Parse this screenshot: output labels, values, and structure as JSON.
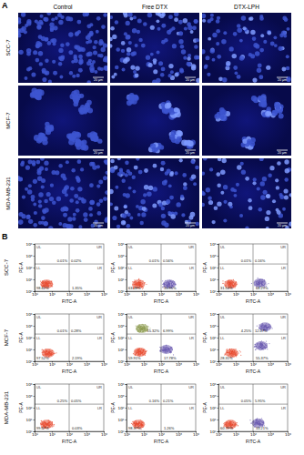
{
  "panel_a": {
    "label": "A",
    "columns": [
      "Control",
      "Free DTX",
      "DTX-LPH"
    ],
    "rows": [
      "SCC-7",
      "MCF-7",
      "MDA-MB-231"
    ],
    "scale_bar": "20 μm"
  },
  "panel_b": {
    "label": "B",
    "rows": [
      "SCC-7",
      "MCF-7",
      "MDA-MB-231"
    ]
  },
  "chart_data": [
    {
      "type": "scatter",
      "x_label": "FITC-A",
      "y_label": "PE-A",
      "log": true,
      "xlim": [
        1,
        10000
      ],
      "ylim": [
        1,
        10000
      ],
      "xticks": [
        {
          "value": 1,
          "label": "10⁰"
        },
        {
          "value": 10,
          "label": "10¹"
        },
        {
          "value": 100,
          "label": "10²"
        },
        {
          "value": 1000,
          "label": "10³"
        },
        {
          "value": 10000,
          "label": "10⁴"
        }
      ],
      "yticks": [
        {
          "value": 1,
          "label": "10⁰"
        },
        {
          "value": 10,
          "label": "10¹"
        },
        {
          "value": 100,
          "label": "10²"
        },
        {
          "value": 1000,
          "label": "10³"
        },
        {
          "value": 10000,
          "label": "10⁴"
        }
      ],
      "gate_x": 100,
      "gate_y": 200,
      "quadrants": {
        "labels": [
          "UL",
          "UR",
          "LL",
          "LR"
        ],
        "values": [
          0.01,
          0.02,
          98.62,
          1.35
        ],
        "value_labels": [
          "0.01%",
          "0.02%",
          "98.62%",
          "1.35%"
        ]
      },
      "populations": {
        "x": [
          5
        ],
        "y": [
          4
        ],
        "colors": [
          "#e84a2f"
        ]
      }
    },
    {
      "type": "scatter",
      "x_label": "FITC-A",
      "y_label": "PE-A",
      "log": true,
      "xlim": [
        1,
        10000
      ],
      "ylim": [
        1,
        10000
      ],
      "xticks": [
        {
          "value": 1,
          "label": "10⁰"
        },
        {
          "value": 10,
          "label": "10¹"
        },
        {
          "value": 100,
          "label": "10²"
        },
        {
          "value": 1000,
          "label": "10³"
        },
        {
          "value": 10000,
          "label": "10⁴"
        }
      ],
      "yticks": [
        {
          "value": 1,
          "label": "10⁰"
        },
        {
          "value": 10,
          "label": "10¹"
        },
        {
          "value": 100,
          "label": "10²"
        },
        {
          "value": 1000,
          "label": "10³"
        },
        {
          "value": 10000,
          "label": "10⁴"
        }
      ],
      "gate_x": 100,
      "gate_y": 200,
      "quadrants": {
        "labels": [
          "UL",
          "UR",
          "LL",
          "LR"
        ],
        "values": [
          0.01,
          0.56,
          63.48,
          35.95
        ],
        "value_labels": [
          "0.01%",
          "0.56%",
          "63.48%",
          "35.95%"
        ]
      },
      "populations": {
        "x": [
          5,
          300
        ],
        "y": [
          4,
          4
        ],
        "colors": [
          "#e84a2f",
          "#6b5bb0"
        ]
      }
    },
    {
      "type": "scatter",
      "x_label": "FITC-A",
      "y_label": "PE-A",
      "log": true,
      "xlim": [
        1,
        10000
      ],
      "ylim": [
        1,
        10000
      ],
      "xticks": [
        {
          "value": 1,
          "label": "10⁰"
        },
        {
          "value": 10,
          "label": "10¹"
        },
        {
          "value": 100,
          "label": "10²"
        },
        {
          "value": 1000,
          "label": "10³"
        },
        {
          "value": 10000,
          "label": "10⁴"
        }
      ],
      "yticks": [
        {
          "value": 1,
          "label": "10⁰"
        },
        {
          "value": 10,
          "label": "10¹"
        },
        {
          "value": 100,
          "label": "10²"
        },
        {
          "value": 1000,
          "label": "10³"
        },
        {
          "value": 10000,
          "label": "10⁴"
        }
      ],
      "gate_x": 100,
      "gate_y": 200,
      "quadrants": {
        "labels": [
          "UL",
          "UR",
          "LL",
          "LR"
        ],
        "values": [
          0.01,
          0.16,
          31.54,
          68.29
        ],
        "value_labels": [
          "0.01%",
          "0.16%",
          "31.54%",
          "68.29%"
        ]
      },
      "populations": {
        "x": [
          5,
          250
        ],
        "y": [
          4,
          5
        ],
        "colors": [
          "#e84a2f",
          "#6b5bb0"
        ]
      }
    },
    {
      "type": "scatter",
      "x_label": "FITC-A",
      "y_label": "PE-A",
      "log": true,
      "xlim": [
        1,
        10000
      ],
      "ylim": [
        1,
        10000
      ],
      "xticks": [
        {
          "value": 1,
          "label": "10⁰"
        },
        {
          "value": 10,
          "label": "10¹"
        },
        {
          "value": 100,
          "label": "10²"
        },
        {
          "value": 1000,
          "label": "10³"
        },
        {
          "value": 10000,
          "label": "10⁴"
        }
      ],
      "yticks": [
        {
          "value": 1,
          "label": "10⁰"
        },
        {
          "value": 10,
          "label": "10¹"
        },
        {
          "value": 100,
          "label": "10²"
        },
        {
          "value": 1000,
          "label": "10³"
        },
        {
          "value": 10000,
          "label": "10⁴"
        }
      ],
      "gate_x": 100,
      "gate_y": 200,
      "quadrants": {
        "labels": [
          "UL",
          "UR",
          "LL",
          "LR"
        ],
        "values": [
          0.01,
          0.28,
          97.52,
          2.19
        ],
        "value_labels": [
          "0.01%",
          "0.28%",
          "97.52%",
          "2.19%"
        ]
      },
      "populations": {
        "x": [
          6
        ],
        "y": [
          5
        ],
        "colors": [
          "#e84a2f"
        ]
      }
    },
    {
      "type": "scatter",
      "x_label": "FITC-A",
      "y_label": "PE-A",
      "log": true,
      "xlim": [
        1,
        10000
      ],
      "ylim": [
        1,
        10000
      ],
      "xticks": [
        {
          "value": 1,
          "label": "10⁰"
        },
        {
          "value": 10,
          "label": "10¹"
        },
        {
          "value": 100,
          "label": "10²"
        },
        {
          "value": 1000,
          "label": "10³"
        },
        {
          "value": 10000,
          "label": "10⁴"
        }
      ],
      "yticks": [
        {
          "value": 1,
          "label": "10⁰"
        },
        {
          "value": 10,
          "label": "10¹"
        },
        {
          "value": 100,
          "label": "10²"
        },
        {
          "value": 1000,
          "label": "10³"
        },
        {
          "value": 10000,
          "label": "10⁴"
        }
      ],
      "gate_x": 100,
      "gate_y": 200,
      "quadrants": {
        "labels": [
          "UL",
          "UR",
          "LL",
          "LR"
        ],
        "values": [
          15.32,
          6.99,
          59.91,
          17.78
        ],
        "value_labels": [
          "15.32%",
          "6.99%",
          "59.91%",
          "17.78%"
        ]
      },
      "populations": {
        "x": [
          6,
          8,
          200
        ],
        "y": [
          6,
          600,
          10
        ],
        "colors": [
          "#e84a2f",
          "#8c9a4e",
          "#6b5bb0"
        ]
      }
    },
    {
      "type": "scatter",
      "x_label": "FITC-A",
      "y_label": "PE-A",
      "log": true,
      "xlim": [
        1,
        10000
      ],
      "ylim": [
        1,
        10000
      ],
      "xticks": [
        {
          "value": 1,
          "label": "10⁰"
        },
        {
          "value": 10,
          "label": "10¹"
        },
        {
          "value": 100,
          "label": "10²"
        },
        {
          "value": 1000,
          "label": "10³"
        },
        {
          "value": 10000,
          "label": "10⁴"
        }
      ],
      "yticks": [
        {
          "value": 1,
          "label": "10⁰"
        },
        {
          "value": 10,
          "label": "10¹"
        },
        {
          "value": 100,
          "label": "10²"
        },
        {
          "value": 1000,
          "label": "10³"
        },
        {
          "value": 10000,
          "label": "10⁴"
        }
      ],
      "gate_x": 100,
      "gate_y": 200,
      "quadrants": {
        "labels": [
          "UL",
          "UR",
          "LL",
          "LR"
        ],
        "values": [
          4.25,
          12.07,
          28.31,
          55.37
        ],
        "value_labels": [
          "4.25%",
          "12.07%",
          "28.31%",
          "55.37%"
        ]
      },
      "populations": {
        "x": [
          6,
          300,
          500
        ],
        "y": [
          5,
          20,
          800
        ],
        "colors": [
          "#e84a2f",
          "#6b5bb0",
          "#6b5bb0"
        ]
      }
    },
    {
      "type": "scatter",
      "x_label": "FITC-A",
      "y_label": "PE-A",
      "log": true,
      "xlim": [
        1,
        10000
      ],
      "ylim": [
        1,
        10000
      ],
      "xticks": [
        {
          "value": 1,
          "label": "10⁰"
        },
        {
          "value": 10,
          "label": "10¹"
        },
        {
          "value": 100,
          "label": "10²"
        },
        {
          "value": 1000,
          "label": "10³"
        },
        {
          "value": 10000,
          "label": "10⁴"
        }
      ],
      "yticks": [
        {
          "value": 1,
          "label": "10⁰"
        },
        {
          "value": 10,
          "label": "10¹"
        },
        {
          "value": 100,
          "label": "10²"
        },
        {
          "value": 1000,
          "label": "10³"
        },
        {
          "value": 10000,
          "label": "10⁴"
        }
      ],
      "gate_x": 100,
      "gate_y": 200,
      "quadrants": {
        "labels": [
          "UL",
          "UR",
          "LL",
          "LR"
        ],
        "values": [
          0.25,
          0.05,
          99.67,
          0.03
        ],
        "value_labels": [
          "0.25%",
          "0.05%",
          "99.67%",
          "0.03%"
        ]
      },
      "populations": {
        "x": [
          5
        ],
        "y": [
          4
        ],
        "colors": [
          "#e84a2f"
        ]
      }
    },
    {
      "type": "scatter",
      "x_label": "FITC-A",
      "y_label": "PE-A",
      "log": true,
      "xlim": [
        1,
        10000
      ],
      "ylim": [
        1,
        10000
      ],
      "xticks": [
        {
          "value": 1,
          "label": "10⁰"
        },
        {
          "value": 10,
          "label": "10¹"
        },
        {
          "value": 100,
          "label": "10²"
        },
        {
          "value": 1000,
          "label": "10³"
        },
        {
          "value": 10000,
          "label": "10⁴"
        }
      ],
      "yticks": [
        {
          "value": 1,
          "label": "10⁰"
        },
        {
          "value": 10,
          "label": "10¹"
        },
        {
          "value": 100,
          "label": "10²"
        },
        {
          "value": 1000,
          "label": "10³"
        },
        {
          "value": 10000,
          "label": "10⁴"
        }
      ],
      "gate_x": 100,
      "gate_y": 200,
      "quadrants": {
        "labels": [
          "UL",
          "UR",
          "LL",
          "LR"
        ],
        "values": [
          0.16,
          0.21,
          98.37,
          1.26
        ],
        "value_labels": [
          "0.16%",
          "0.21%",
          "98.37%",
          "1.26%"
        ]
      },
      "populations": {
        "x": [
          5
        ],
        "y": [
          4
        ],
        "colors": [
          "#e84a2f"
        ]
      }
    },
    {
      "type": "scatter",
      "x_label": "FITC-A",
      "y_label": "PE-A",
      "log": true,
      "xlim": [
        1,
        10000
      ],
      "ylim": [
        1,
        10000
      ],
      "xticks": [
        {
          "value": 1,
          "label": "10⁰"
        },
        {
          "value": 10,
          "label": "10¹"
        },
        {
          "value": 100,
          "label": "10²"
        },
        {
          "value": 1000,
          "label": "10³"
        },
        {
          "value": 10000,
          "label": "10⁴"
        }
      ],
      "yticks": [
        {
          "value": 1,
          "label": "10⁰"
        },
        {
          "value": 10,
          "label": "10¹"
        },
        {
          "value": 100,
          "label": "10²"
        },
        {
          "value": 1000,
          "label": "10³"
        },
        {
          "value": 10000,
          "label": "10⁴"
        }
      ],
      "gate_x": 100,
      "gate_y": 200,
      "quadrants": {
        "labels": [
          "UL",
          "UR",
          "LL",
          "LR"
        ],
        "values": [
          0.05,
          5.95,
          60.79,
          33.21
        ],
        "value_labels": [
          "0.05%",
          "5.95%",
          "60.79%",
          "33.21%"
        ]
      },
      "populations": {
        "x": [
          5,
          200
        ],
        "y": [
          4,
          5
        ],
        "colors": [
          "#e84a2f",
          "#6b5bb0"
        ]
      }
    }
  ]
}
